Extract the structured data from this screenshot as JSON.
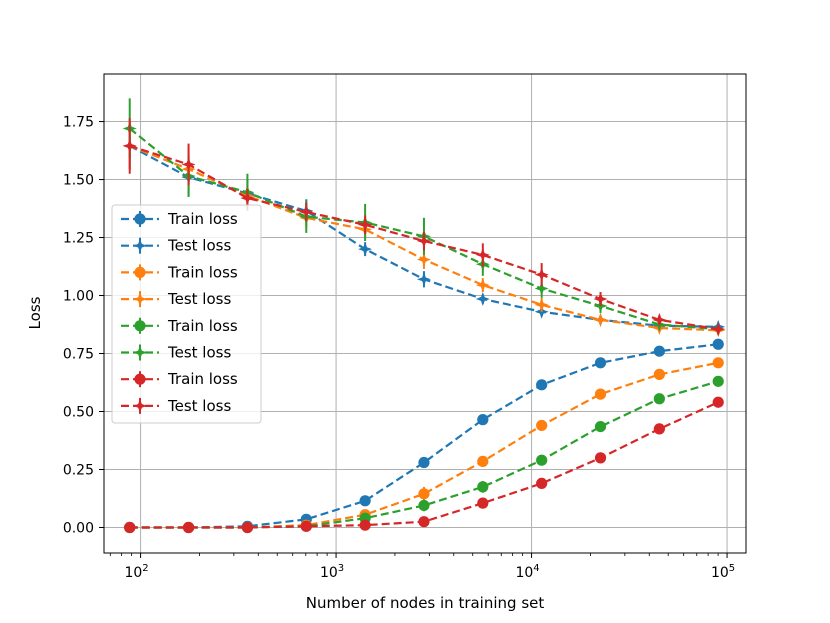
{
  "chart_data": {
    "type": "line",
    "title": "",
    "xlabel": "Number of nodes in training set",
    "ylabel": "Loss",
    "xscale": "log",
    "xlim": [
      65,
      125000
    ],
    "ylim": [
      -0.11,
      1.955
    ],
    "grid": true,
    "legend_position": "center-left",
    "x": [
      88,
      176,
      352,
      704,
      1408,
      2816,
      5632,
      11264,
      22528,
      45056,
      90112
    ],
    "x_ticks": [
      {
        "value": 100,
        "base": "10",
        "exp": "2"
      },
      {
        "value": 1000,
        "base": "10",
        "exp": "3"
      },
      {
        "value": 10000,
        "base": "10",
        "exp": "4"
      },
      {
        "value": 100000,
        "base": "10",
        "exp": "5"
      }
    ],
    "y_ticks": [
      {
        "value": 0.0,
        "label": "0.00"
      },
      {
        "value": 0.25,
        "label": "0.25"
      },
      {
        "value": 0.5,
        "label": "0.50"
      },
      {
        "value": 0.75,
        "label": "0.75"
      },
      {
        "value": 1.0,
        "label": "1.00"
      },
      {
        "value": 1.25,
        "label": "1.25"
      },
      {
        "value": 1.5,
        "label": "1.50"
      },
      {
        "value": 1.75,
        "label": "1.75"
      }
    ],
    "series": [
      {
        "name": "Train loss",
        "color": "#1f77b4",
        "marker": "circle",
        "values": [
          0.0,
          0.0,
          0.005,
          0.035,
          0.115,
          0.28,
          0.465,
          0.615,
          0.71,
          0.76,
          0.79
        ],
        "errors": [
          0.005,
          0.005,
          0.005,
          0.01,
          0.015,
          0.015,
          0.015,
          0.01,
          0.01,
          0.01,
          0.01
        ]
      },
      {
        "name": "Test loss",
        "color": "#1f77b4",
        "marker": "star",
        "values": [
          1.645,
          1.51,
          1.44,
          1.365,
          1.2,
          1.07,
          0.985,
          0.93,
          0.895,
          0.87,
          0.865
        ],
        "errors": [
          0.1,
          0.08,
          0.06,
          0.05,
          0.03,
          0.035,
          0.02,
          0.02,
          0.015,
          0.015,
          0.015
        ]
      },
      {
        "name": "Train loss",
        "color": "#ff7f0e",
        "marker": "circle",
        "values": [
          0.0,
          0.0,
          0.0,
          0.01,
          0.055,
          0.145,
          0.285,
          0.44,
          0.575,
          0.66,
          0.71
        ],
        "errors": [
          0.005,
          0.005,
          0.005,
          0.01,
          0.015,
          0.03,
          0.015,
          0.015,
          0.015,
          0.01,
          0.01
        ]
      },
      {
        "name": "Test loss",
        "color": "#ff7f0e",
        "marker": "star",
        "values": [
          1.645,
          1.545,
          1.43,
          1.335,
          1.285,
          1.155,
          1.045,
          0.96,
          0.895,
          0.86,
          0.85
        ],
        "errors": [
          0.1,
          0.09,
          0.05,
          0.04,
          0.04,
          0.04,
          0.03,
          0.03,
          0.02,
          0.015,
          0.015
        ]
      },
      {
        "name": "Train loss",
        "color": "#2ca02c",
        "marker": "circle",
        "values": [
          0.0,
          0.0,
          0.0,
          0.005,
          0.04,
          0.095,
          0.175,
          0.29,
          0.435,
          0.555,
          0.63
        ],
        "errors": [
          0.005,
          0.005,
          0.005,
          0.01,
          0.02,
          0.025,
          0.025,
          0.02,
          0.015,
          0.015,
          0.01
        ]
      },
      {
        "name": "Test loss",
        "color": "#2ca02c",
        "marker": "star",
        "values": [
          1.72,
          1.515,
          1.445,
          1.34,
          1.315,
          1.255,
          1.135,
          1.03,
          0.955,
          0.875,
          0.855
        ],
        "errors": [
          0.13,
          0.09,
          0.08,
          0.07,
          0.08,
          0.08,
          0.05,
          0.04,
          0.03,
          0.02,
          0.02
        ]
      },
      {
        "name": "Train loss",
        "color": "#d62728",
        "marker": "circle",
        "values": [
          0.0,
          0.0,
          0.0,
          0.005,
          0.01,
          0.025,
          0.105,
          0.19,
          0.3,
          0.425,
          0.54
        ],
        "errors": [
          0.005,
          0.005,
          0.005,
          0.005,
          0.01,
          0.01,
          0.015,
          0.015,
          0.015,
          0.01,
          0.01
        ]
      },
      {
        "name": "Test loss",
        "color": "#d62728",
        "marker": "star",
        "values": [
          1.645,
          1.565,
          1.42,
          1.36,
          1.305,
          1.235,
          1.175,
          1.09,
          0.985,
          0.895,
          0.855
        ],
        "errors": [
          0.12,
          0.09,
          0.04,
          0.04,
          0.04,
          0.04,
          0.05,
          0.05,
          0.03,
          0.02,
          0.02
        ]
      }
    ]
  }
}
